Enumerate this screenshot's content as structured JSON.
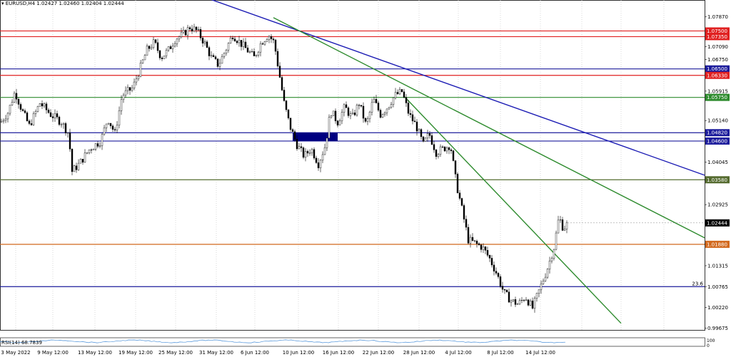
{
  "window": {
    "symbol_header": "EURUSD,H4  1.02427 1.02460 1.02404 1.02444",
    "rsi_label": "RSI(14) 68.7839",
    "rsi_scale_top": "100",
    "rsi_scale_bottom": "0"
  },
  "chart_data": {
    "type": "candlestick",
    "title": "EURUSD,H4",
    "ohlc_last": {
      "open": 1.02427,
      "high": 1.0246,
      "low": 1.02404,
      "close": 1.02444
    },
    "ylim": [
      0.99625,
      1.0809
    ],
    "x_tick_labels": [
      "3 May 2022",
      "9 May 12:00",
      "13 May 12:00",
      "19 May 12:00",
      "25 May 12:00",
      "31 May 12:00",
      "6 Jun 12:00",
      "10 Jun 12:00",
      "16 Jun 12:00",
      "22 Jun 12:00",
      "28 Jun 12:00",
      "4 Jul 12:00",
      "8 Jul 12:00",
      "14 Jul 12:00"
    ],
    "y_tick_labels": [
      "1.07870",
      "1.07090",
      "1.06750",
      "1.06500",
      "1.05915",
      "1.05140",
      "1.04045",
      "1.03580",
      "1.02925",
      "1.02444",
      "1.01880",
      "1.01315",
      "1.00765",
      "1.00220",
      "0.99675"
    ],
    "price_path": [
      [
        0,
        1.051
      ],
      [
        10,
        1.0535
      ],
      [
        20,
        1.059
      ],
      [
        30,
        1.054
      ],
      [
        40,
        1.05
      ],
      [
        55,
        1.056
      ],
      [
        70,
        1.053
      ],
      [
        85,
        1.051
      ],
      [
        95,
        1.048
      ],
      [
        100,
        1.038
      ],
      [
        110,
        1.04
      ],
      [
        125,
        1.044
      ],
      [
        140,
        1.046
      ],
      [
        150,
        1.052
      ],
      [
        160,
        1.048
      ],
      [
        170,
        1.058
      ],
      [
        185,
        1.06
      ],
      [
        195,
        1.065
      ],
      [
        205,
        1.07
      ],
      [
        215,
        1.072
      ],
      [
        225,
        1.068
      ],
      [
        235,
        1.07
      ],
      [
        245,
        1.073
      ],
      [
        255,
        1.074
      ],
      [
        265,
        1.076
      ],
      [
        275,
        1.075
      ],
      [
        285,
        1.072
      ],
      [
        295,
        1.068
      ],
      [
        305,
        1.066
      ],
      [
        315,
        1.07
      ],
      [
        325,
        1.074
      ],
      [
        335,
        1.072
      ],
      [
        345,
        1.07
      ],
      [
        355,
        1.068
      ],
      [
        365,
        1.072
      ],
      [
        375,
        1.074
      ],
      [
        383,
        1.072
      ],
      [
        390,
        1.064
      ],
      [
        397,
        1.056
      ],
      [
        405,
        1.05
      ],
      [
        415,
        1.045
      ],
      [
        425,
        1.042
      ],
      [
        435,
        1.044
      ],
      [
        445,
        1.04
      ],
      [
        455,
        1.045
      ],
      [
        462,
        1.054
      ],
      [
        472,
        1.051
      ],
      [
        482,
        1.055
      ],
      [
        492,
        1.052
      ],
      [
        502,
        1.056
      ],
      [
        512,
        1.05
      ],
      [
        522,
        1.057
      ],
      [
        532,
        1.053
      ],
      [
        542,
        1.055
      ],
      [
        552,
        1.058
      ],
      [
        562,
        1.059
      ],
      [
        572,
        1.053
      ],
      [
        582,
        1.05
      ],
      [
        592,
        1.045
      ],
      [
        600,
        1.048
      ],
      [
        610,
        1.043
      ],
      [
        620,
        1.044
      ],
      [
        630,
        1.045
      ],
      [
        638,
        1.035
      ],
      [
        645,
        1.029
      ],
      [
        655,
        1.02
      ],
      [
        665,
        1.019
      ],
      [
        675,
        1.018
      ],
      [
        685,
        1.015
      ],
      [
        695,
        1.011
      ],
      [
        705,
        1.006
      ],
      [
        715,
        1.004
      ],
      [
        725,
        1.003
      ],
      [
        735,
        1.005
      ],
      [
        745,
        1.002
      ],
      [
        755,
        1.007
      ],
      [
        765,
        1.012
      ],
      [
        775,
        1.018
      ],
      [
        782,
        1.026
      ],
      [
        788,
        1.023
      ],
      [
        795,
        1.0244
      ]
    ],
    "horizontal_levels": [
      {
        "price": 1.075,
        "label": "1.07500",
        "color": "#e02020"
      },
      {
        "price": 1.0735,
        "label": "1.07350",
        "color": "#e02020"
      },
      {
        "price": 1.065,
        "label": "1.06500",
        "color": "#1c1c9c"
      },
      {
        "price": 1.0633,
        "label": "1.06330",
        "color": "#e02020"
      },
      {
        "price": 1.0575,
        "label": "1.05750",
        "color": "#2e8b2e"
      },
      {
        "price": 1.0482,
        "label": "1.04820",
        "color": "#1c1c9c"
      },
      {
        "price": 1.046,
        "label": "1.04600",
        "color": "#1c1c9c"
      },
      {
        "price": 1.0358,
        "label": "1.03580",
        "color": "#556b2f"
      },
      {
        "price": 1.0188,
        "label": "1.01880",
        "color": "#d2691e"
      },
      {
        "price": 1.00765,
        "label": "23.6",
        "color": "#1c1c9c"
      }
    ],
    "trendlines": [
      {
        "color": "#1c1cb4",
        "from": [
          0,
          1.087
        ],
        "to": [
          1,
          1.037
        ]
      },
      {
        "color": "#2e8b2e",
        "from": [
          0,
          1.0785
        ],
        "to": [
          1,
          1.0205
        ]
      },
      {
        "color": "#2e8b2e",
        "from": [
          0,
          1.058
        ],
        "to": [
          1,
          0.998
        ]
      }
    ],
    "accent_zone": {
      "price_top": 1.0482,
      "price_bottom": 1.046,
      "color": "#000080"
    },
    "last_price_badge": "1.02444"
  }
}
